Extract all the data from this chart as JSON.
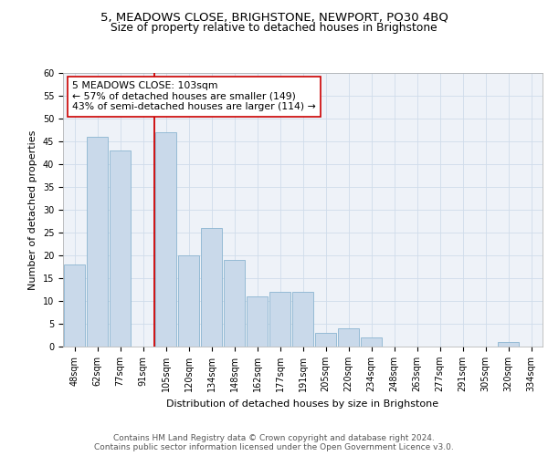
{
  "title1": "5, MEADOWS CLOSE, BRIGHSTONE, NEWPORT, PO30 4BQ",
  "title2": "Size of property relative to detached houses in Brighstone",
  "xlabel": "Distribution of detached houses by size in Brighstone",
  "ylabel": "Number of detached properties",
  "bar_labels": [
    "48sqm",
    "62sqm",
    "77sqm",
    "91sqm",
    "105sqm",
    "120sqm",
    "134sqm",
    "148sqm",
    "162sqm",
    "177sqm",
    "191sqm",
    "205sqm",
    "220sqm",
    "234sqm",
    "248sqm",
    "263sqm",
    "277sqm",
    "291sqm",
    "305sqm",
    "320sqm",
    "334sqm"
  ],
  "bar_values": [
    18,
    46,
    43,
    0,
    47,
    20,
    26,
    19,
    11,
    12,
    12,
    3,
    4,
    2,
    0,
    0,
    0,
    0,
    0,
    1,
    0
  ],
  "bar_color": "#c9d9ea",
  "bar_edge_color": "#8ab4d0",
  "vline_color": "#cc0000",
  "annotation_text": "5 MEADOWS CLOSE: 103sqm\n← 57% of detached houses are smaller (149)\n43% of semi-detached houses are larger (114) →",
  "annotation_box_color": "#ffffff",
  "annotation_box_edge": "#cc0000",
  "ylim": [
    0,
    60
  ],
  "yticks": [
    0,
    5,
    10,
    15,
    20,
    25,
    30,
    35,
    40,
    45,
    50,
    55,
    60
  ],
  "grid_color": "#d0dcea",
  "background_color": "#eef2f8",
  "footer": "Contains HM Land Registry data © Crown copyright and database right 2024.\nContains public sector information licensed under the Open Government Licence v3.0.",
  "title1_fontsize": 9.5,
  "title2_fontsize": 8.8,
  "annotation_fontsize": 7.8,
  "tick_fontsize": 7,
  "ylabel_fontsize": 8,
  "xlabel_fontsize": 8,
  "footer_fontsize": 6.5
}
